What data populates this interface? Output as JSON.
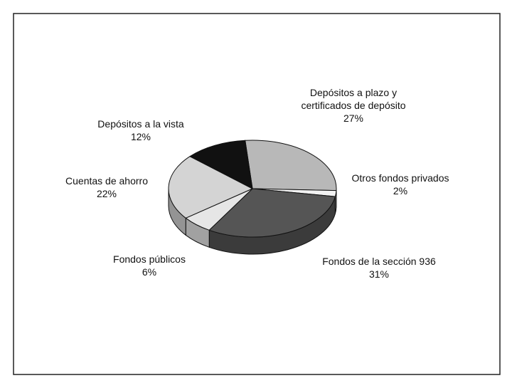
{
  "chart_data": {
    "type": "pie",
    "categories": [
      "Depósitos a plazo y certificados de depósito",
      "Otros fondos privados",
      "Fondos de la sección 936",
      "Fondos públicos",
      "Cuentas de ahorro",
      "Depósitos a la vista"
    ],
    "values": [
      27,
      2,
      31,
      6,
      22,
      12
    ],
    "value_labels": [
      "27%",
      "2%",
      "31%",
      "6%",
      "22%",
      "12%"
    ],
    "colors": [
      "#b8b8b8",
      "#f2f2f2",
      "#555555",
      "#e6e6e6",
      "#d4d4d4",
      "#111111"
    ]
  }
}
